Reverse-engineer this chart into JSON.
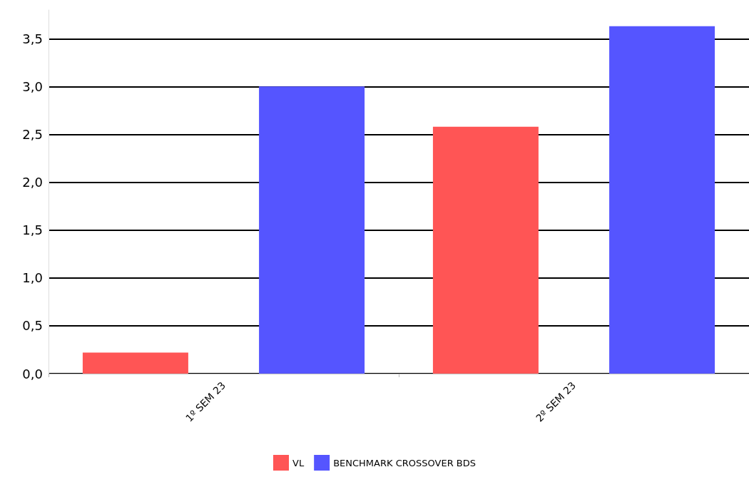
{
  "chart_data": {
    "type": "bar",
    "categories": [
      "1º SEM 23",
      "2º SEM 23"
    ],
    "series": [
      {
        "name": "VL",
        "color": "#ff5555",
        "values": [
          0.22,
          2.58
        ]
      },
      {
        "name": "BENCHMARK CROSSOVER BDS",
        "color": "#5555ff",
        "values": [
          3.0,
          3.63
        ]
      }
    ],
    "ylim": [
      0,
      3.8
    ],
    "yticks": [
      {
        "value": 0,
        "label": "0,0"
      },
      {
        "value": 0.5,
        "label": "0,5"
      },
      {
        "value": 1,
        "label": "1,0"
      },
      {
        "value": 1.5,
        "label": "1,5"
      },
      {
        "value": 2,
        "label": "2,0"
      },
      {
        "value": 2.5,
        "label": "2,5"
      },
      {
        "value": 3,
        "label": "3,0"
      },
      {
        "value": 3.5,
        "label": "3,5"
      }
    ],
    "grid": "y",
    "legend": "bottom"
  }
}
